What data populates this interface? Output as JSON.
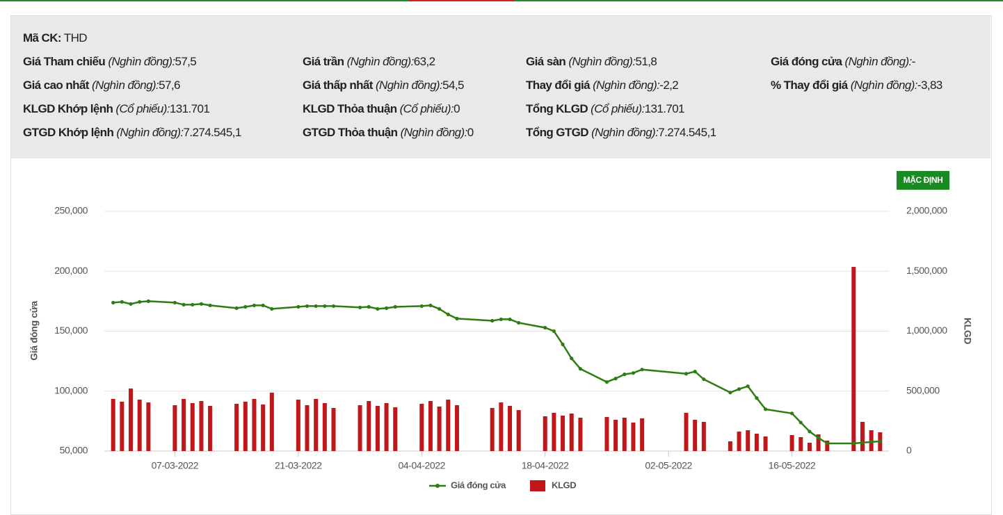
{
  "info": {
    "symbol": {
      "label": "Mã CK:",
      "value": "THD"
    },
    "rows": [
      [
        {
          "label": "Giá Tham chiếu",
          "unit": "(Nghìn đồng):",
          "value": "57,5"
        },
        {
          "label": "Giá trần",
          "unit": "(Nghìn đồng):",
          "value": "63,2"
        },
        {
          "label": "Giá sàn",
          "unit": "(Nghìn đồng):",
          "value": "51,8"
        },
        {
          "label": "Giá đóng cửa",
          "unit": "(Nghìn đồng):",
          "value": "-"
        }
      ],
      [
        {
          "label": "Giá cao nhất",
          "unit": "(Nghìn đồng):",
          "value": "57,6"
        },
        {
          "label": "Giá thấp nhất",
          "unit": "(Nghìn đồng):",
          "value": "54,5"
        },
        {
          "label": "Thay đổi giá",
          "unit": "(Nghìn đồng):",
          "value": "-2,2"
        },
        {
          "label": "% Thay đổi giá",
          "unit": "(Nghìn đồng):",
          "value": "-3,83"
        }
      ],
      [
        {
          "label": "KLGD Khớp lệnh",
          "unit": "(Cổ phiếu):",
          "value": "131.701"
        },
        {
          "label": "KLGD Thỏa thuận",
          "unit": "(Cổ phiếu):",
          "value": "0"
        },
        {
          "label": "Tổng KLGD",
          "unit": "(Cổ phiếu):",
          "value": "131.701"
        }
      ],
      [
        {
          "label": "GTGD Khớp lệnh",
          "unit": "(Nghìn đồng):",
          "value": "7.274.545,1"
        },
        {
          "label": "GTGD Thỏa thuận",
          "unit": "(Nghìn đồng):",
          "value": "0"
        },
        {
          "label": "Tổng GTGD",
          "unit": "(Nghìn đồng):",
          "value": "7.274.545,1"
        }
      ]
    ],
    "button": "MẶC ĐỊNH"
  },
  "chart_data": {
    "type": "combo",
    "y_label": "Giá đóng cửa",
    "y2_label": "KLGD",
    "x": [
      "28-02-2022",
      "01-03-2022",
      "02-03-2022",
      "03-03-2022",
      "04-03-2022",
      "07-03-2022",
      "08-03-2022",
      "09-03-2022",
      "10-03-2022",
      "11-03-2022",
      "14-03-2022",
      "15-03-2022",
      "16-03-2022",
      "17-03-2022",
      "18-03-2022",
      "21-03-2022",
      "22-03-2022",
      "23-03-2022",
      "24-03-2022",
      "25-03-2022",
      "28-03-2022",
      "29-03-2022",
      "30-03-2022",
      "31-03-2022",
      "01-04-2022",
      "04-04-2022",
      "05-04-2022",
      "06-04-2022",
      "07-04-2022",
      "08-04-2022",
      "12-04-2022",
      "13-04-2022",
      "14-04-2022",
      "15-04-2022",
      "18-04-2022",
      "19-04-2022",
      "20-04-2022",
      "21-04-2022",
      "22-04-2022",
      "25-04-2022",
      "26-04-2022",
      "27-04-2022",
      "28-04-2022",
      "29-04-2022",
      "04-05-2022",
      "05-05-2022",
      "06-05-2022",
      "09-05-2022",
      "10-05-2022",
      "11-05-2022",
      "12-05-2022",
      "13-05-2022",
      "16-05-2022",
      "17-05-2022",
      "18-05-2022",
      "19-05-2022",
      "20-05-2022",
      "23-05-2022",
      "24-05-2022",
      "25-05-2022",
      "26-05-2022"
    ],
    "xlim": [
      "27-02-2022",
      "27-05-2022"
    ],
    "xticks": [
      "07-03-2022",
      "21-03-2022",
      "04-04-2022",
      "18-04-2022",
      "02-05-2022",
      "16-05-2022"
    ],
    "ylim": [
      50000,
      250000
    ],
    "yticks": [
      {
        "value": 50000,
        "label": "50,000"
      },
      {
        "value": 100000,
        "label": "100,000"
      },
      {
        "value": 150000,
        "label": "150,000"
      },
      {
        "value": 200000,
        "label": "200,000"
      },
      {
        "value": 250000,
        "label": "250,000"
      }
    ],
    "y2lim": [
      0,
      2000000
    ],
    "y2ticks": [
      0,
      {
        "value": 500000,
        "label": "500,000"
      },
      {
        "value": 1000000,
        "label": "1,000,000"
      },
      {
        "value": 1500000,
        "label": "1,500,000"
      },
      {
        "value": 2000000,
        "label": "2,000,000"
      }
    ],
    "grid": true,
    "series": [
      {
        "name": "Giá đóng cửa",
        "type": "line",
        "color": "#2e7d12",
        "axis": "y",
        "values": [
          173800,
          174400,
          172700,
          174400,
          175000,
          173800,
          172100,
          172100,
          172700,
          171500,
          169200,
          170300,
          171500,
          171500,
          168600,
          170300,
          170900,
          170900,
          170900,
          170900,
          169800,
          170300,
          168600,
          169200,
          170300,
          170900,
          171500,
          168600,
          164000,
          160500,
          158700,
          159900,
          159900,
          157000,
          152900,
          150000,
          139000,
          127300,
          118600,
          107600,
          110500,
          114000,
          115100,
          118000,
          114500,
          116300,
          109900,
          98800,
          101700,
          104100,
          94200,
          84900,
          81400,
          73800,
          66300,
          61000,
          56400,
          56400,
          57000,
          57600,
          58100
        ]
      },
      {
        "name": "KLGD",
        "type": "bar",
        "color": "#c0171b",
        "axis": "y2",
        "values": [
          434800,
          411600,
          521700,
          429000,
          405800,
          382600,
          434800,
          400000,
          417400,
          376800,
          394200,
          411600,
          434800,
          388400,
          487000,
          429000,
          382600,
          434800,
          400000,
          359400,
          382600,
          417400,
          376800,
          400000,
          365200,
          394200,
          417400,
          371000,
          429000,
          382600,
          359400,
          405800,
          376800,
          342000,
          289900,
          318800,
          295600,
          313000,
          278300,
          284100,
          260900,
          278300,
          237700,
          272500,
          318800,
          260900,
          243500,
          81200,
          162300,
          173900,
          144900,
          121700,
          133300,
          115900,
          69600,
          139100,
          87000,
          1536200,
          243500,
          173900,
          156500
        ]
      }
    ]
  }
}
